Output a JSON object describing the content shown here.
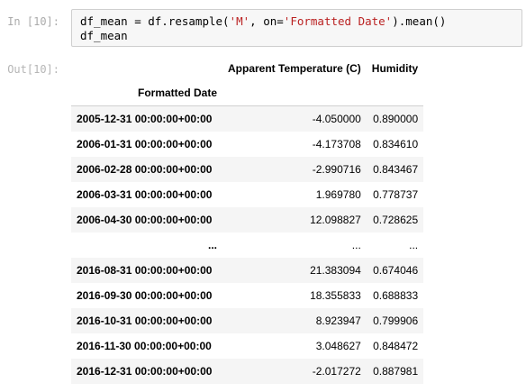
{
  "input_cell": {
    "prompt": "In [10]:",
    "line1_a": "df_mean = df.resample(",
    "line1_s1": "'M'",
    "line1_b": ", on=",
    "line1_s2": "'Formatted Date'",
    "line1_c": ").mean()",
    "line2": "df_mean"
  },
  "output_cell": {
    "prompt": "Out[10]:",
    "columns": [
      "Apparent Temperature (C)",
      "Humidity"
    ],
    "index_name": "Formatted Date",
    "rows": [
      {
        "index": "2005-12-31 00:00:00+00:00",
        "temp": "-4.050000",
        "humidity": "0.890000"
      },
      {
        "index": "2006-01-31 00:00:00+00:00",
        "temp": "-4.173708",
        "humidity": "0.834610"
      },
      {
        "index": "2006-02-28 00:00:00+00:00",
        "temp": "-2.990716",
        "humidity": "0.843467"
      },
      {
        "index": "2006-03-31 00:00:00+00:00",
        "temp": "1.969780",
        "humidity": "0.778737"
      },
      {
        "index": "2006-04-30 00:00:00+00:00",
        "temp": "12.098827",
        "humidity": "0.728625"
      },
      {
        "index": "...",
        "temp": "...",
        "humidity": "..."
      },
      {
        "index": "2016-08-31 00:00:00+00:00",
        "temp": "21.383094",
        "humidity": "0.674046"
      },
      {
        "index": "2016-09-30 00:00:00+00:00",
        "temp": "18.355833",
        "humidity": "0.688833"
      },
      {
        "index": "2016-10-31 00:00:00+00:00",
        "temp": "8.923947",
        "humidity": "0.799906"
      },
      {
        "index": "2016-11-30 00:00:00+00:00",
        "temp": "3.048627",
        "humidity": "0.848472"
      },
      {
        "index": "2016-12-31 00:00:00+00:00",
        "temp": "-2.017272",
        "humidity": "0.887981"
      }
    ]
  }
}
